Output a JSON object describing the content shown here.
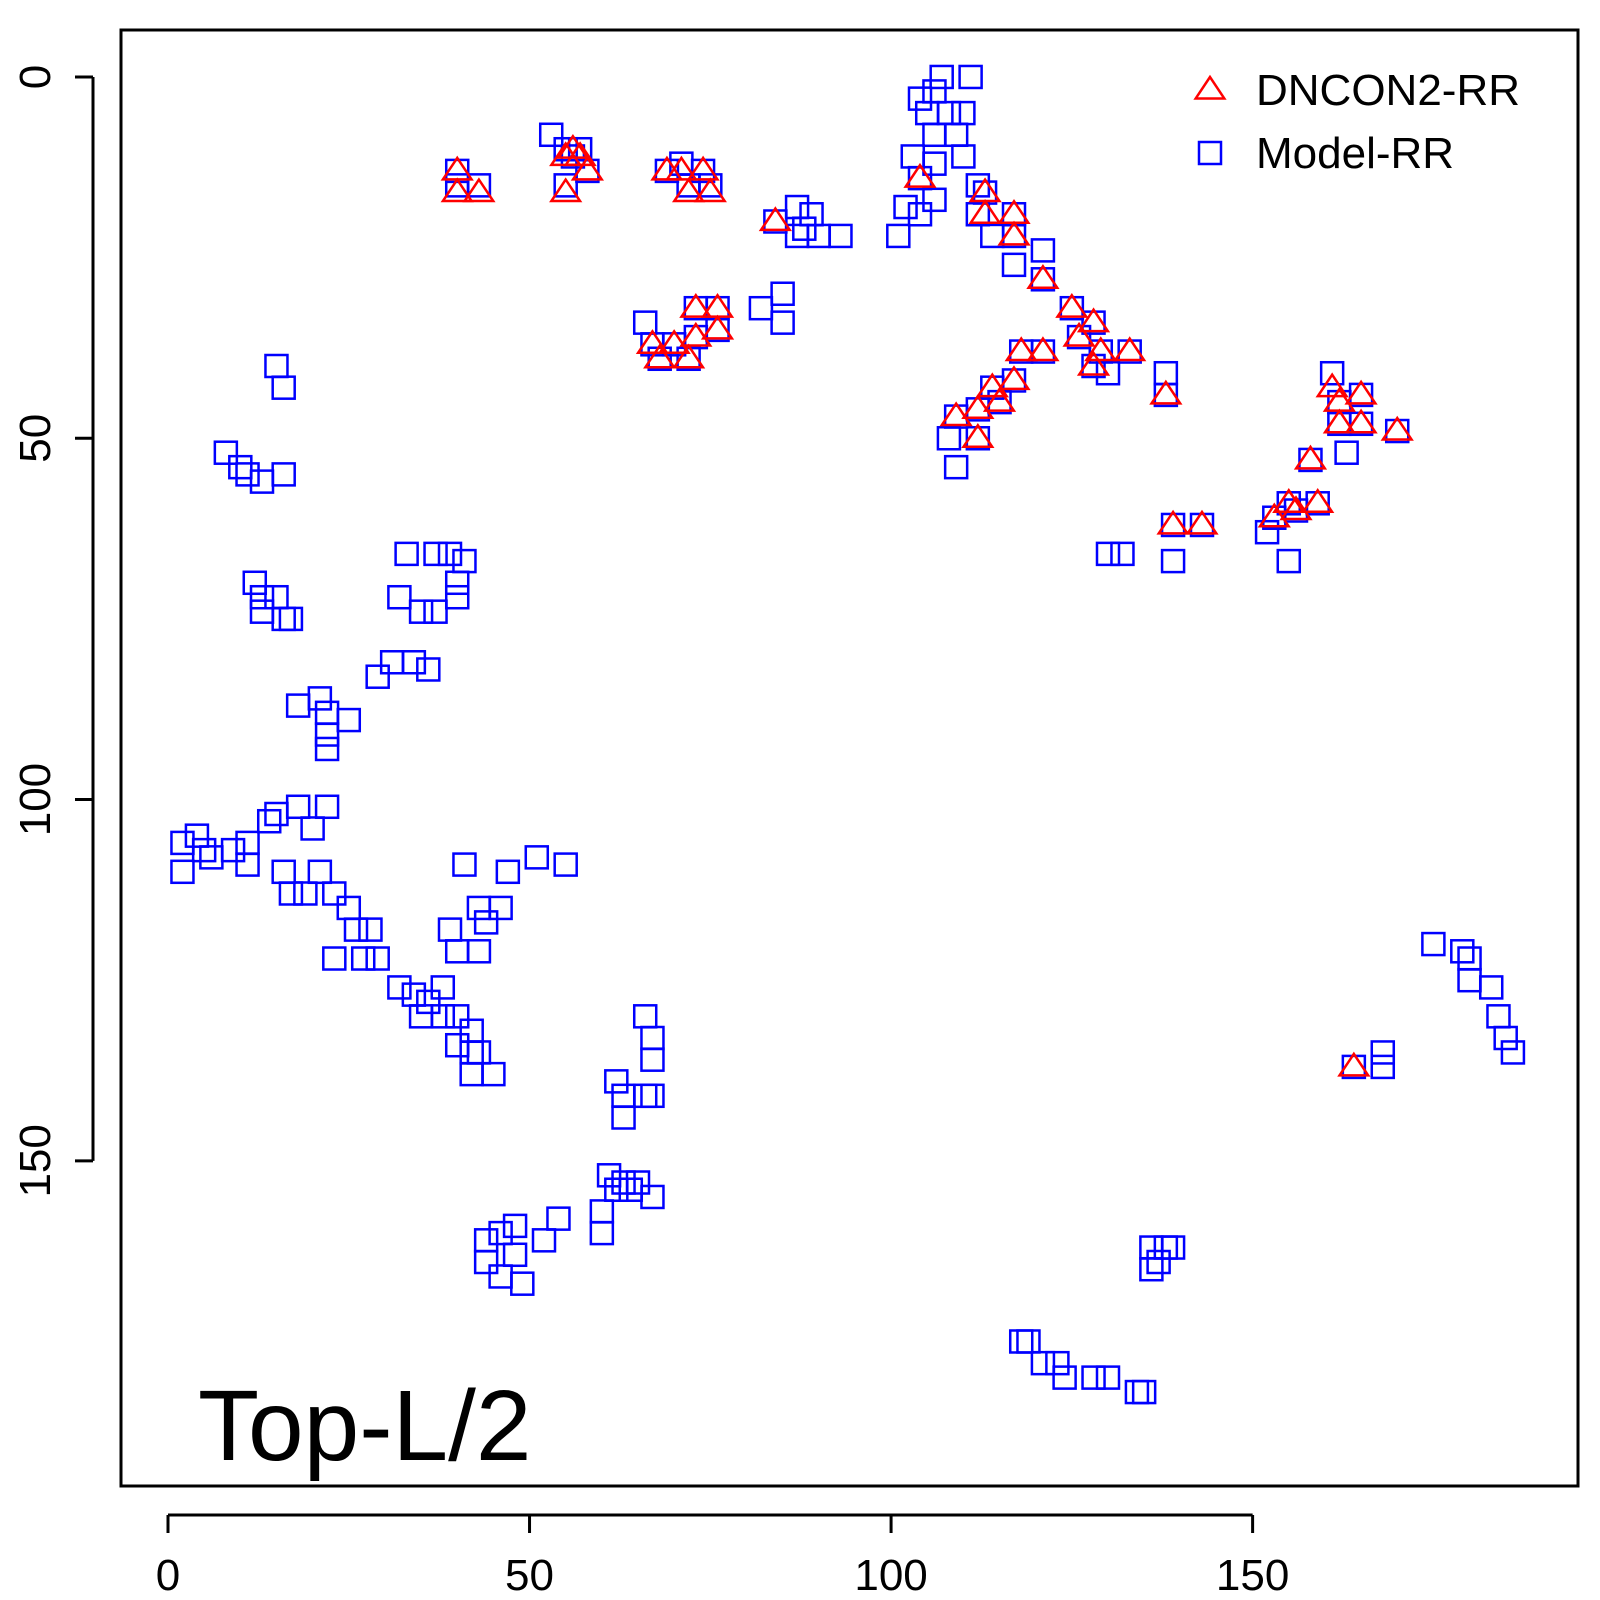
{
  "chart_data": {
    "type": "scatter",
    "title": "",
    "xlabel": "",
    "ylabel": "",
    "xlim": [
      -6.5,
      195
    ],
    "ylim": [
      -6.5,
      195
    ],
    "y_inverted": true,
    "xticks": [
      0,
      50,
      100,
      150
    ],
    "yticks": [
      0,
      50,
      100,
      150
    ],
    "grid": false,
    "legend_position": "top-right",
    "annotation": "Top-L/2",
    "series": [
      {
        "name": "DNCON2-RR",
        "marker": "triangle",
        "color": "#ff0000",
        "points": [
          [
            40,
            13
          ],
          [
            40,
            16
          ],
          [
            43,
            16
          ],
          [
            55,
            11
          ],
          [
            56,
            10
          ],
          [
            57,
            11
          ],
          [
            58,
            13
          ],
          [
            55,
            16
          ],
          [
            69,
            13
          ],
          [
            71,
            13
          ],
          [
            72,
            16
          ],
          [
            74,
            13
          ],
          [
            75,
            16
          ],
          [
            84,
            20
          ],
          [
            104,
            14
          ],
          [
            113,
            16
          ],
          [
            113,
            19
          ],
          [
            117,
            19
          ],
          [
            117,
            22
          ],
          [
            121,
            28
          ],
          [
            125,
            32
          ],
          [
            126,
            36
          ],
          [
            128,
            34
          ],
          [
            129,
            38
          ],
          [
            128,
            40
          ],
          [
            133,
            38
          ],
          [
            67,
            37
          ],
          [
            68,
            39
          ],
          [
            70,
            37
          ],
          [
            72,
            39
          ],
          [
            73,
            32
          ],
          [
            73,
            36
          ],
          [
            76,
            32
          ],
          [
            76,
            35
          ],
          [
            109,
            47
          ],
          [
            112,
            46
          ],
          [
            112,
            50
          ],
          [
            114,
            43
          ],
          [
            115,
            45
          ],
          [
            117,
            42
          ],
          [
            118,
            38
          ],
          [
            121,
            38
          ],
          [
            138,
            44
          ],
          [
            139,
            62
          ],
          [
            143,
            62
          ],
          [
            153,
            61
          ],
          [
            155,
            59
          ],
          [
            156,
            60
          ],
          [
            158,
            53
          ],
          [
            159,
            59
          ],
          [
            161,
            43
          ],
          [
            162,
            45
          ],
          [
            162,
            48
          ],
          [
            165,
            44
          ],
          [
            165,
            48
          ],
          [
            170,
            49
          ],
          [
            164,
            137
          ]
        ]
      },
      {
        "name": "Model-RR",
        "marker": "square",
        "color": "#0000ff",
        "points": [
          [
            40,
            13
          ],
          [
            40,
            15
          ],
          [
            43,
            15
          ],
          [
            53,
            8
          ],
          [
            55,
            10
          ],
          [
            56,
            11
          ],
          [
            57,
            10
          ],
          [
            58,
            13
          ],
          [
            55,
            15
          ],
          [
            69,
            13
          ],
          [
            71,
            12
          ],
          [
            72,
            15
          ],
          [
            74,
            13
          ],
          [
            75,
            15
          ],
          [
            84,
            20
          ],
          [
            87,
            18
          ],
          [
            88,
            21
          ],
          [
            89,
            19
          ],
          [
            90,
            22
          ],
          [
            93,
            22
          ],
          [
            82,
            32
          ],
          [
            85,
            30
          ],
          [
            85,
            34
          ],
          [
            87,
            22
          ],
          [
            104,
            3
          ],
          [
            105,
            5
          ],
          [
            106,
            2
          ],
          [
            107,
            0
          ],
          [
            108,
            5
          ],
          [
            106,
            8
          ],
          [
            109,
            8
          ],
          [
            110,
            5
          ],
          [
            111,
            0
          ],
          [
            103,
            11
          ],
          [
            104,
            14
          ],
          [
            106,
            12
          ],
          [
            102,
            18
          ],
          [
            104,
            19
          ],
          [
            106,
            17
          ],
          [
            101,
            22
          ],
          [
            110,
            11
          ],
          [
            112,
            15
          ],
          [
            113,
            16
          ],
          [
            112,
            19
          ],
          [
            114,
            22
          ],
          [
            117,
            19
          ],
          [
            117,
            22
          ],
          [
            117,
            26
          ],
          [
            121,
            24
          ],
          [
            121,
            28
          ],
          [
            125,
            32
          ],
          [
            126,
            36
          ],
          [
            128,
            34
          ],
          [
            129,
            38
          ],
          [
            128,
            40
          ],
          [
            133,
            38
          ],
          [
            130,
            41
          ],
          [
            66,
            34
          ],
          [
            67,
            37
          ],
          [
            68,
            39
          ],
          [
            70,
            37
          ],
          [
            72,
            39
          ],
          [
            73,
            32
          ],
          [
            73,
            36
          ],
          [
            76,
            32
          ],
          [
            76,
            35
          ],
          [
            108,
            50
          ],
          [
            109,
            54
          ],
          [
            109,
            47
          ],
          [
            112,
            46
          ],
          [
            112,
            50
          ],
          [
            114,
            43
          ],
          [
            115,
            45
          ],
          [
            117,
            42
          ],
          [
            118,
            38
          ],
          [
            121,
            38
          ],
          [
            138,
            41
          ],
          [
            138,
            44
          ],
          [
            139,
            62
          ],
          [
            143,
            62
          ],
          [
            139,
            67
          ],
          [
            130,
            66
          ],
          [
            132,
            66
          ],
          [
            153,
            61
          ],
          [
            155,
            59
          ],
          [
            156,
            60
          ],
          [
            158,
            53
          ],
          [
            159,
            59
          ],
          [
            161,
            41
          ],
          [
            162,
            45
          ],
          [
            162,
            48
          ],
          [
            163,
            52
          ],
          [
            165,
            44
          ],
          [
            165,
            48
          ],
          [
            170,
            49
          ],
          [
            155,
            67
          ],
          [
            152,
            63
          ],
          [
            15,
            40
          ],
          [
            16,
            43
          ],
          [
            8,
            52
          ],
          [
            10,
            54
          ],
          [
            11,
            55
          ],
          [
            13,
            56
          ],
          [
            16,
            55
          ],
          [
            12,
            70
          ],
          [
            13,
            72
          ],
          [
            13,
            74
          ],
          [
            15,
            72
          ],
          [
            16,
            75
          ],
          [
            17,
            75
          ],
          [
            33,
            66
          ],
          [
            37,
            66
          ],
          [
            39,
            66
          ],
          [
            41,
            67
          ],
          [
            40,
            70
          ],
          [
            32,
            72
          ],
          [
            35,
            74
          ],
          [
            37,
            74
          ],
          [
            40,
            72
          ],
          [
            31,
            81
          ],
          [
            34,
            81
          ],
          [
            36,
            82
          ],
          [
            29,
            83
          ],
          [
            18,
            87
          ],
          [
            21,
            86
          ],
          [
            22,
            88
          ],
          [
            25,
            89
          ],
          [
            22,
            91
          ],
          [
            22,
            93
          ],
          [
            2,
            106
          ],
          [
            4,
            105
          ],
          [
            5,
            107
          ],
          [
            6,
            108
          ],
          [
            9,
            107
          ],
          [
            11,
            106
          ],
          [
            11,
            109
          ],
          [
            14,
            103
          ],
          [
            15,
            102
          ],
          [
            18,
            101
          ],
          [
            20,
            104
          ],
          [
            22,
            101
          ],
          [
            16,
            110
          ],
          [
            17,
            113
          ],
          [
            19,
            113
          ],
          [
            21,
            110
          ],
          [
            23,
            113
          ],
          [
            25,
            115
          ],
          [
            26,
            118
          ],
          [
            28,
            118
          ],
          [
            23,
            122
          ],
          [
            27,
            122
          ],
          [
            29,
            122
          ],
          [
            2,
            110
          ],
          [
            41,
            109
          ],
          [
            47,
            110
          ],
          [
            51,
            108
          ],
          [
            55,
            109
          ],
          [
            43,
            115
          ],
          [
            44,
            117
          ],
          [
            46,
            115
          ],
          [
            39,
            118
          ],
          [
            40,
            121
          ],
          [
            43,
            121
          ],
          [
            32,
            126
          ],
          [
            34,
            127
          ],
          [
            36,
            128
          ],
          [
            38,
            126
          ],
          [
            35,
            130
          ],
          [
            38,
            130
          ],
          [
            40,
            130
          ],
          [
            42,
            132
          ],
          [
            42,
            135
          ],
          [
            40,
            134
          ],
          [
            43,
            135
          ],
          [
            42,
            138
          ],
          [
            45,
            138
          ],
          [
            66,
            130
          ],
          [
            67,
            133
          ],
          [
            67,
            136
          ],
          [
            62,
            139
          ],
          [
            63,
            141
          ],
          [
            63,
            144
          ],
          [
            66,
            141
          ],
          [
            67,
            141
          ],
          [
            61,
            152
          ],
          [
            62,
            154
          ],
          [
            63,
            153
          ],
          [
            64,
            154
          ],
          [
            65,
            153
          ],
          [
            67,
            155
          ],
          [
            60,
            157
          ],
          [
            60,
            160
          ],
          [
            44,
            161
          ],
          [
            46,
            160
          ],
          [
            48,
            159
          ],
          [
            44,
            164
          ],
          [
            46,
            166
          ],
          [
            48,
            163
          ],
          [
            49,
            167
          ],
          [
            52,
            161
          ],
          [
            54,
            158
          ],
          [
            136,
            162
          ],
          [
            137,
            164
          ],
          [
            138,
            162
          ],
          [
            139,
            162
          ],
          [
            136,
            165
          ],
          [
            118,
            175
          ],
          [
            119,
            175
          ],
          [
            121,
            178
          ],
          [
            123,
            178
          ],
          [
            124,
            180
          ],
          [
            128,
            180
          ],
          [
            130,
            180
          ],
          [
            134,
            182
          ],
          [
            135,
            182
          ],
          [
            175,
            120
          ],
          [
            179,
            121
          ],
          [
            180,
            122
          ],
          [
            180,
            125
          ],
          [
            183,
            126
          ],
          [
            184,
            130
          ],
          [
            185,
            133
          ],
          [
            186,
            135
          ],
          [
            164,
            137
          ],
          [
            168,
            137
          ],
          [
            168,
            135
          ]
        ]
      }
    ]
  }
}
